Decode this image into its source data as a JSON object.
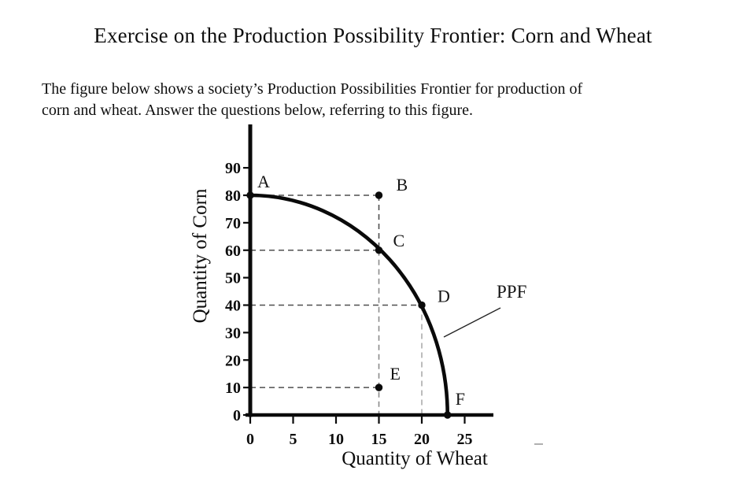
{
  "document": {
    "title": "Exercise on the Production Possibility Frontier: Corn and Wheat",
    "intro_lines": [
      "The figure below shows a society’s Production Possibilities Frontier for production of",
      "corn and wheat. Answer the questions below, referring to this figure."
    ]
  },
  "chart_data": {
    "type": "line",
    "title": "",
    "xlabel": "Quantity of Wheat",
    "ylabel": "Quantity of Corn",
    "xlim": [
      0,
      25
    ],
    "ylim": [
      0,
      90
    ],
    "x_ticks": [
      0,
      5,
      10,
      15,
      20,
      25
    ],
    "y_ticks": [
      0,
      10,
      20,
      30,
      40,
      50,
      60,
      70,
      80,
      90
    ],
    "grid": false,
    "legend": "none",
    "curve": {
      "name": "PPF",
      "shape": "concave quarter-ellipse",
      "wheat_intercept": 23,
      "corn_intercept": 80
    },
    "points": [
      {
        "label": "A",
        "wheat": 0,
        "corn": 80,
        "on_curve": true,
        "label_offset": [
          9,
          -10
        ]
      },
      {
        "label": "B",
        "wheat": 15,
        "corn": 80,
        "on_curve": false,
        "label_offset": [
          22,
          -6
        ]
      },
      {
        "label": "C",
        "wheat": 15,
        "corn": 60,
        "on_curve": true,
        "label_offset": [
          18,
          -5
        ]
      },
      {
        "label": "D",
        "wheat": 20,
        "corn": 40,
        "on_curve": true,
        "label_offset": [
          20,
          -4
        ]
      },
      {
        "label": "E",
        "wheat": 15,
        "corn": 10,
        "on_curve": false,
        "label_offset": [
          14,
          -10
        ]
      },
      {
        "label": "F",
        "wheat": 23,
        "corn": 0,
        "on_curve": true,
        "label_offset": [
          10,
          -13
        ]
      }
    ],
    "guides": [
      {
        "x1": 0,
        "y1": 80,
        "x2": 15,
        "y2": 80,
        "shade": "dark"
      },
      {
        "x1": 15,
        "y1": 80,
        "x2": 15,
        "y2": 60,
        "shade": "dark"
      },
      {
        "x1": 15,
        "y1": 60,
        "x2": 15,
        "y2": 0,
        "shade": "medium"
      },
      {
        "x1": 0,
        "y1": 60,
        "x2": 15,
        "y2": 60,
        "shade": "dark"
      },
      {
        "x1": 0,
        "y1": 40,
        "x2": 20,
        "y2": 40,
        "shade": "dark"
      },
      {
        "x1": 20,
        "y1": 40,
        "x2": 20,
        "y2": 0,
        "shade": "light"
      },
      {
        "x1": 0,
        "y1": 10,
        "x2": 15,
        "y2": 10,
        "shade": "dark"
      }
    ],
    "annotations": [
      {
        "text": "PPF",
        "points_to": "curve"
      }
    ]
  },
  "colors": {
    "ink": "#0a0a0a",
    "background": "#ffffff",
    "guide_dark": "#4f4f4f",
    "guide_medium": "#8a8a8a",
    "guide_light": "#ababab",
    "stray_mark": "#b0b0b0"
  }
}
